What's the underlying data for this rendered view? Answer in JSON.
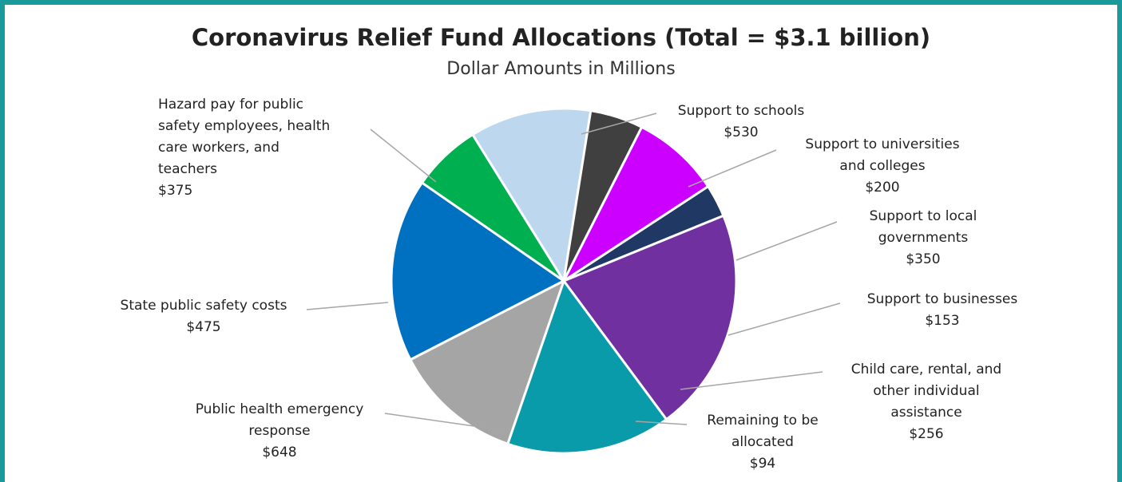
{
  "chart_data": {
    "type": "pie",
    "title": "Coronavirus Relief Fund Allocations (Total = $3.1 billion)",
    "subtitle": "Dollar Amounts in Millions",
    "slices": [
      {
        "label": "Support to schools",
        "value": 530,
        "value_label": "$530",
        "color": "#0070c0"
      },
      {
        "label": "Support to universities\nand colleges",
        "value": 200,
        "value_label": "$200",
        "color": "#00b050"
      },
      {
        "label": "Support to local\ngovernments",
        "value": 350,
        "value_label": "$350",
        "color": "#bdd7ee"
      },
      {
        "label": "Support to businesses",
        "value": 153,
        "value_label": "$153",
        "color": "#404040"
      },
      {
        "label": "Child care, rental, and\nother individual\nassistance",
        "value": 256,
        "value_label": "$256",
        "color": "#cc00ff"
      },
      {
        "label": "Remaining to be\nallocated",
        "value": 94,
        "value_label": "$94",
        "color": "#1f3864"
      },
      {
        "label": "Public health emergency\nresponse",
        "value": 648,
        "value_label": "$648",
        "color": "#7030a0"
      },
      {
        "label": "State public safety costs",
        "value": 475,
        "value_label": "$475",
        "color": "#0a9baa"
      },
      {
        "label": "Hazard pay for public\nsafety employees, health\ncare workers, and\nteachers",
        "value": 375,
        "value_label": "$375",
        "color": "#a5a5a5"
      }
    ]
  }
}
